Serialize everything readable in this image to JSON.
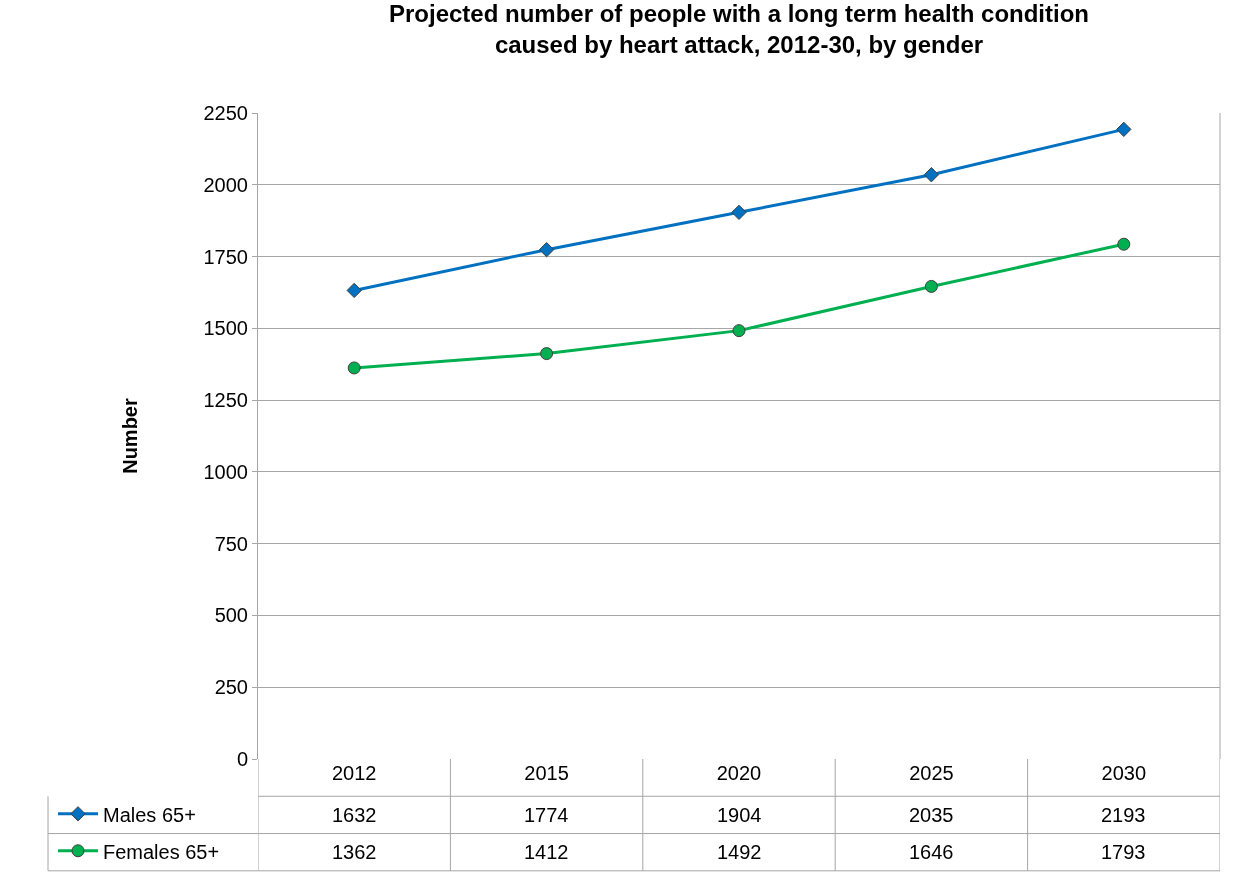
{
  "chart_data": {
    "type": "line",
    "title": "Projected number of people with a long term health condition\ncaused by heart attack, 2012-30, by gender",
    "ylabel": "Number",
    "categories": [
      "2012",
      "2015",
      "2020",
      "2025",
      "2030"
    ],
    "series": [
      {
        "name": "Males 65+",
        "color": "#0070c0",
        "marker": "diamond",
        "values": [
          1632,
          1774,
          1904,
          2035,
          2193
        ]
      },
      {
        "name": "Females 65+",
        "color": "#00b050",
        "marker": "circle",
        "values": [
          1362,
          1412,
          1492,
          1646,
          1793
        ]
      }
    ],
    "ylim": [
      0,
      2250
    ],
    "yticks": [
      0,
      250,
      500,
      750,
      1000,
      1250,
      1500,
      1750,
      2000,
      2250
    ],
    "grid": "y",
    "legend": "bottom left",
    "data_labels": true
  }
}
